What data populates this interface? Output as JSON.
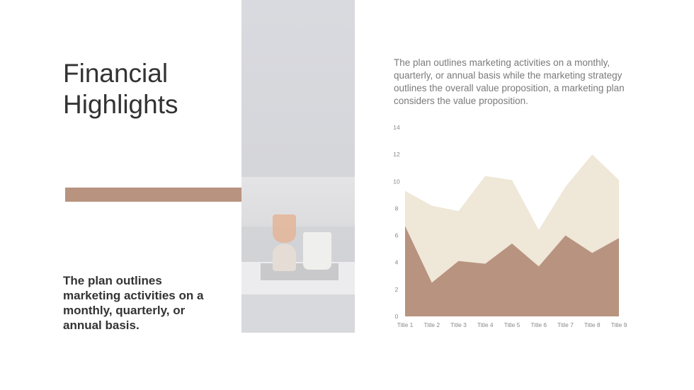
{
  "title": "Financial Highlights",
  "subtitle": "The plan outlines marketing activities on a monthly, quarterly, or annual basis.",
  "description": "The plan outlines marketing activities on a monthly, quarterly, or annual basis while the marketing strategy outlines the overall value proposition, a marketing plan considers the value proposition.",
  "colors": {
    "accent": "#b8937f",
    "light": "#efe7d7"
  },
  "chart_data": {
    "type": "area",
    "stacked": true,
    "categories": [
      "Title 1",
      "Title 2",
      "Title 3",
      "Title 4",
      "Title 5",
      "Title 6",
      "Title 7",
      "Title 8",
      "Title 9"
    ],
    "series": [
      {
        "values": [
          6.7,
          2.5,
          4.1,
          3.9,
          5.4,
          3.7,
          6.0,
          4.7,
          5.8
        ],
        "color": "#b8937f"
      },
      {
        "values": [
          2.6,
          5.7,
          3.7,
          6.5,
          4.7,
          2.7,
          3.6,
          7.3,
          4.3
        ],
        "color": "#efe7d7"
      }
    ],
    "ylim": [
      0,
      14
    ],
    "yticks": [
      "0",
      "2",
      "4",
      "6",
      "8",
      "10",
      "12",
      "14"
    ],
    "grid": false,
    "legend": "none"
  }
}
